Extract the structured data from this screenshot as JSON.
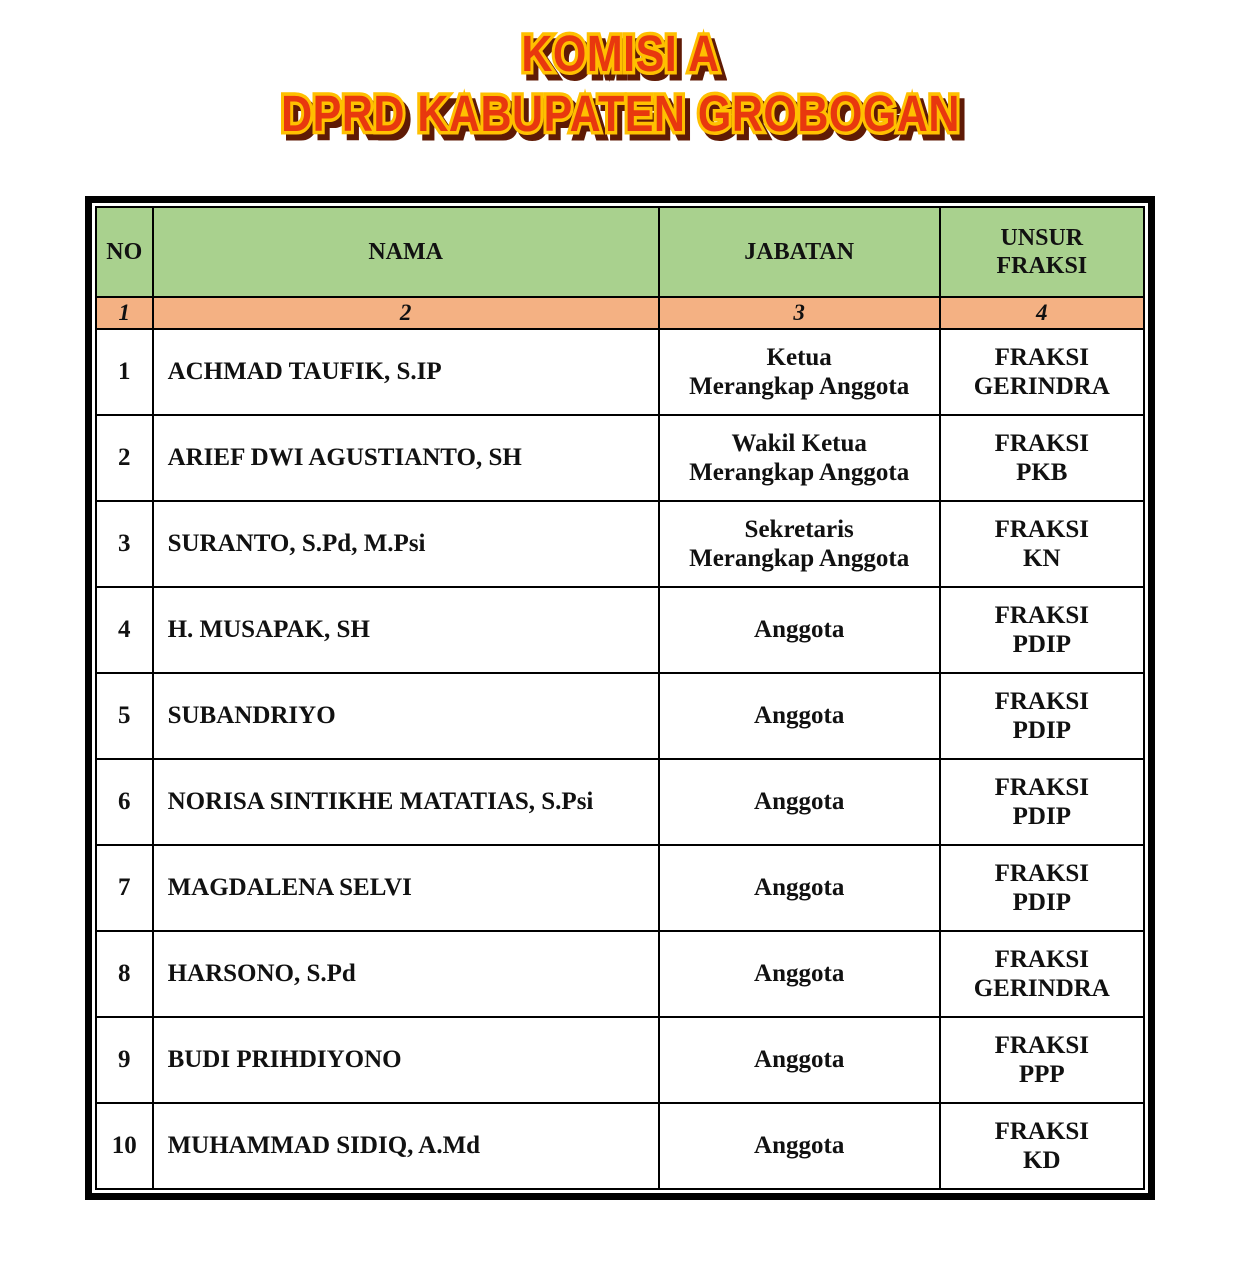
{
  "page": {
    "background": "#ffffff"
  },
  "title": {
    "line1": "KOMISI A",
    "line2": "DPRD KABUPATEN GROBOGAN",
    "fill_color": "#e8380e",
    "outline_color": "#ffc000",
    "shadow_color": "#5f1a05"
  },
  "table": {
    "header_bg": "#a9d18e",
    "number_row_bg": "#f4b183",
    "border_color": "#000000",
    "headers": {
      "no": "NO",
      "nama": "NAMA",
      "jabatan": "JABATAN",
      "unsur_fraksi": "UNSUR\nFRAKSI"
    },
    "column_numbers": {
      "c1": "1",
      "c2": "2",
      "c3": "3",
      "c4": "4"
    },
    "rows": [
      {
        "no": "1",
        "nama": "ACHMAD TAUFIK, S.IP",
        "jabatan": "Ketua\nMerangkap Anggota",
        "fraksi": "FRAKSI\nGERINDRA"
      },
      {
        "no": "2",
        "nama": "ARIEF DWI AGUSTIANTO, SH",
        "jabatan": "Wakil Ketua\nMerangkap Anggota",
        "fraksi": "FRAKSI\nPKB"
      },
      {
        "no": "3",
        "nama": "SURANTO, S.Pd, M.Psi",
        "jabatan": "Sekretaris\nMerangkap Anggota",
        "fraksi": "FRAKSI\nKN"
      },
      {
        "no": "4",
        "nama": "H. MUSAPAK, SH",
        "jabatan": "Anggota",
        "fraksi": "FRAKSI\nPDIP"
      },
      {
        "no": "5",
        "nama": "SUBANDRIYO",
        "jabatan": "Anggota",
        "fraksi": "FRAKSI\nPDIP"
      },
      {
        "no": "6",
        "nama": "NORISA SINTIKHE MATATIAS, S.Psi",
        "jabatan": "Anggota",
        "fraksi": "FRAKSI\nPDIP"
      },
      {
        "no": "7",
        "nama": "MAGDALENA SELVI",
        "jabatan": "Anggota",
        "fraksi": "FRAKSI\nPDIP"
      },
      {
        "no": "8",
        "nama": "HARSONO, S.Pd",
        "jabatan": "Anggota",
        "fraksi": "FRAKSI\nGERINDRA"
      },
      {
        "no": "9",
        "nama": "BUDI PRIHDIYONO",
        "jabatan": "Anggota",
        "fraksi": "FRAKSI\nPPP"
      },
      {
        "no": "10",
        "nama": "MUHAMMAD SIDIQ, A.Md",
        "jabatan": "Anggota",
        "fraksi": "FRAKSI\nKD"
      }
    ]
  }
}
